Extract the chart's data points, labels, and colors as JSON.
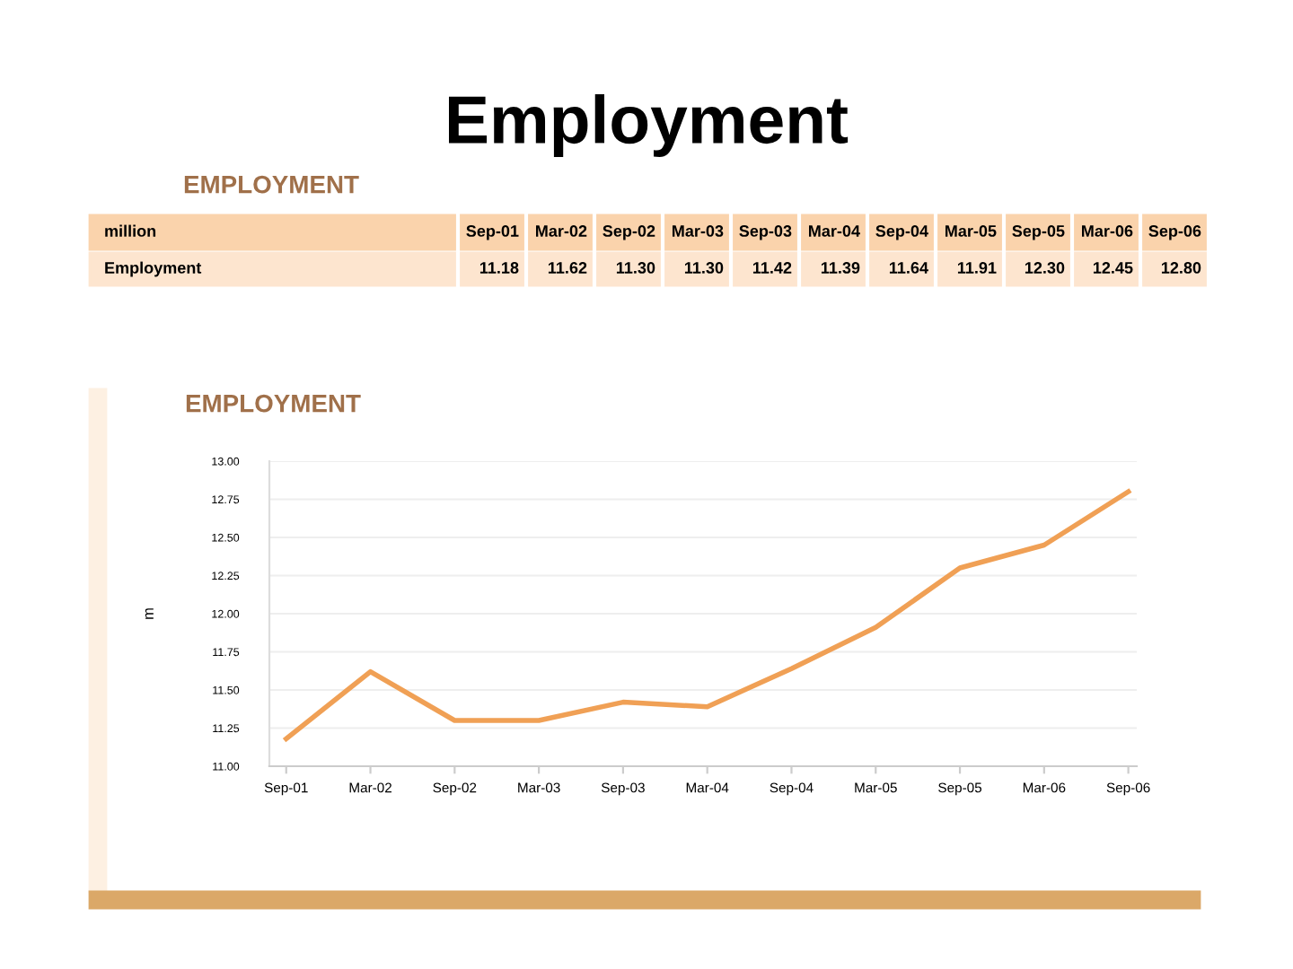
{
  "chart_data": {
    "type": "line",
    "title": "Employment",
    "subtitle": "EMPLOYMENT",
    "ylabel": "m",
    "annotations": [
      "EMPLOYMENT",
      "million",
      "Employment",
      "11.18",
      "11.62",
      "11.30",
      "11.30",
      "11.42",
      "11.39",
      "11.64",
      "11.91",
      "12.30",
      "12.45",
      "12.80"
    ],
    "categories": [
      "Sep-01",
      "Mar-02",
      "Sep-02",
      "Mar-03",
      "Sep-03",
      "Mar-04",
      "Sep-04",
      "Mar-05",
      "Sep-05",
      "Mar-06",
      "Sep-06"
    ],
    "series": [
      {
        "color": "#f0a055",
        "values": [
          11.18,
          11.62,
          11.3,
          11.3,
          11.42,
          11.39,
          11.64,
          11.91,
          12.3,
          12.45,
          12.8
        ]
      }
    ],
    "ylim": [
      11.0,
      13.0
    ],
    "yticks": [
      {
        "value": 11.0,
        "label": "11.00"
      },
      {
        "value": 11.25,
        "label": "11.25"
      },
      {
        "value": 11.5,
        "label": "11.50"
      },
      {
        "value": 11.75,
        "label": "11.75"
      },
      {
        "value": 12.0,
        "label": "12.00"
      },
      {
        "value": 12.25,
        "label": "12.25"
      },
      {
        "value": 12.5,
        "label": "12.50"
      },
      {
        "value": 12.75,
        "label": "12.75"
      },
      {
        "value": 13.0,
        "label": "13.00"
      }
    ],
    "grid": "y",
    "legend": false,
    "marker": "none",
    "line_style": "solid"
  }
}
